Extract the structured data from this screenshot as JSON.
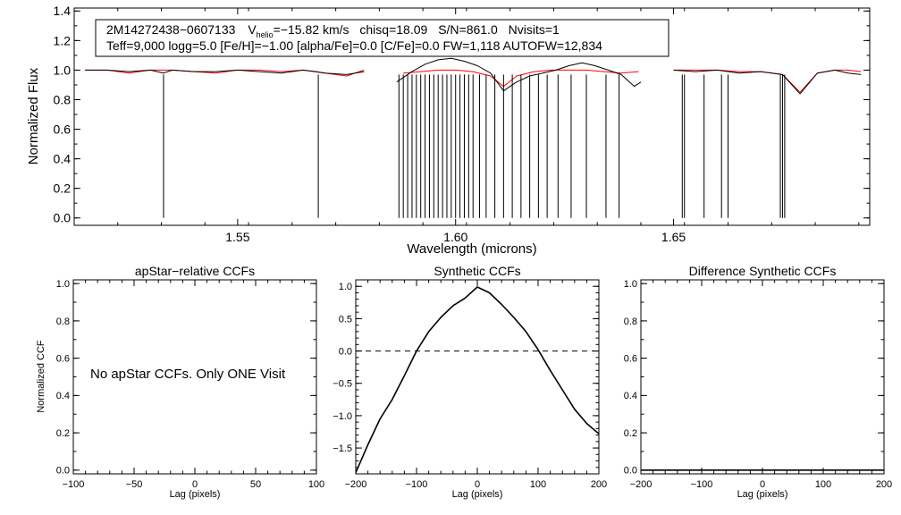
{
  "chart_data": [
    {
      "id": "spectrum",
      "type": "line",
      "xlabel": "Wavelength (microns)",
      "ylabel": "Normalized Flux",
      "xlim": [
        1.5125,
        1.695
      ],
      "ylim": [
        -0.05,
        1.42
      ],
      "x_ticks": [
        1.55,
        1.6,
        1.65
      ],
      "x_ticklabels": [
        "1.55",
        "1.60",
        "1.65"
      ],
      "y_ticks": [
        0.0,
        0.2,
        0.4,
        0.6,
        0.8,
        1.0,
        1.2,
        1.4
      ],
      "y_ticklabels": [
        "0.0",
        "0.2",
        "0.4",
        "0.6",
        "0.8",
        "1.0",
        "1.2",
        "1.4"
      ],
      "annotation": {
        "line1_star": "2M14272438−0607133",
        "line1_vhelio_prefix": "V",
        "line1_vhelio_sub": "helio",
        "line1_vhelio_value": "=−15.82 km/s",
        "line1_chisq": "chisq=18.09",
        "line1_sn": "S/N=861.0",
        "line1_nvisits": "Nvisits=1",
        "line2": "Teff=9,000 logg=5.0 [Fe/H]=−1.00 [alpha/Fe]=0.0 [C/Fe]=0.0 FW=1,118 AUTOFW=12,834"
      },
      "series": [
        {
          "name": "observed",
          "color": "#000000",
          "chips": [
            {
              "x": [
                1.515,
                1.52,
                1.525,
                1.53,
                1.533,
                1.535,
                1.54,
                1.545,
                1.55,
                1.555,
                1.56,
                1.565,
                1.568,
                1.57,
                1.575,
                1.579
              ],
              "y": [
                1.0,
                1.0,
                0.99,
                1.0,
                0.98,
                1.0,
                0.99,
                0.99,
                1.0,
                0.99,
                0.98,
                1.0,
                0.99,
                0.98,
                0.97,
                0.99
              ],
              "spikes": [
                [
                  1.533,
                  0.0
                ],
                [
                  1.5685,
                  0.0
                ]
              ]
            },
            {
              "x": [
                1.5865,
                1.588,
                1.59,
                1.593,
                1.596,
                1.599,
                1.602,
                1.605,
                1.608,
                1.611,
                1.614,
                1.617,
                1.62,
                1.623,
                1.626,
                1.629,
                1.632,
                1.635,
                1.638,
                1.641,
                1.6425
              ],
              "y": [
                0.92,
                0.95,
                0.99,
                1.04,
                1.07,
                1.08,
                1.06,
                1.03,
                0.98,
                0.86,
                0.92,
                0.96,
                0.98,
                1.0,
                1.03,
                1.05,
                1.03,
                1.0,
                0.97,
                0.89,
                0.92
              ],
              "spikes": [
                [
                  1.587,
                  0.0
                ],
                [
                  1.588,
                  0.0
                ],
                [
                  1.589,
                  0.0
                ],
                [
                  1.59,
                  0.0
                ],
                [
                  1.591,
                  0.0
                ],
                [
                  1.592,
                  0.0
                ],
                [
                  1.593,
                  0.0
                ],
                [
                  1.594,
                  0.0
                ],
                [
                  1.595,
                  0.0
                ],
                [
                  1.596,
                  0.0
                ],
                [
                  1.597,
                  0.0
                ],
                [
                  1.598,
                  0.0
                ],
                [
                  1.599,
                  0.0
                ],
                [
                  1.6,
                  0.0
                ],
                [
                  1.601,
                  0.0
                ],
                [
                  1.602,
                  0.0
                ],
                [
                  1.603,
                  0.0
                ],
                [
                  1.604,
                  0.0
                ],
                [
                  1.6055,
                  0.0
                ],
                [
                  1.607,
                  0.0
                ],
                [
                  1.609,
                  0.0
                ],
                [
                  1.611,
                  0.0
                ],
                [
                  1.613,
                  0.0
                ],
                [
                  1.615,
                  0.0
                ],
                [
                  1.617,
                  0.0
                ],
                [
                  1.619,
                  0.0
                ],
                [
                  1.621,
                  0.0
                ],
                [
                  1.6235,
                  0.0
                ],
                [
                  1.6265,
                  0.0
                ],
                [
                  1.63,
                  0.0
                ],
                [
                  1.6345,
                  0.0
                ],
                [
                  1.6375,
                  0.0
                ]
              ]
            },
            {
              "x": [
                1.65,
                1.655,
                1.66,
                1.665,
                1.67,
                1.675,
                1.679,
                1.683,
                1.687,
                1.69,
                1.693
              ],
              "y": [
                1.0,
                0.99,
                1.0,
                0.98,
                0.99,
                0.97,
                0.84,
                0.98,
                1.0,
                0.98,
                0.97
              ],
              "spikes": [
                [
                  1.652,
                  0.0
                ],
                [
                  1.6525,
                  0.0
                ],
                [
                  1.657,
                  0.0
                ],
                [
                  1.661,
                  0.0
                ],
                [
                  1.6625,
                  0.0
                ],
                [
                  1.6745,
                  0.0
                ],
                [
                  1.675,
                  0.0
                ],
                [
                  1.6755,
                  0.0
                ]
              ]
            }
          ]
        },
        {
          "name": "model",
          "color": "#ff0000",
          "chips": [
            {
              "x": [
                1.515,
                1.52,
                1.525,
                1.53,
                1.535,
                1.54,
                1.545,
                1.55,
                1.555,
                1.56,
                1.565,
                1.57,
                1.575,
                1.579
              ],
              "y": [
                1.0,
                1.0,
                0.98,
                1.0,
                1.0,
                0.99,
                0.98,
                1.0,
                1.0,
                0.99,
                1.0,
                0.98,
                0.96,
                1.0
              ]
            },
            {
              "x": [
                1.588,
                1.592,
                1.596,
                1.6,
                1.604,
                1.608,
                1.611,
                1.614,
                1.618,
                1.622,
                1.626,
                1.63,
                1.634,
                1.638,
                1.642
              ],
              "y": [
                0.98,
                0.99,
                1.0,
                1.0,
                0.99,
                0.96,
                0.89,
                0.96,
                0.99,
                1.0,
                1.0,
                1.0,
                0.99,
                0.98,
                0.99
              ]
            },
            {
              "x": [
                1.65,
                1.655,
                1.66,
                1.665,
                1.67,
                1.675,
                1.679,
                1.683,
                1.687,
                1.69,
                1.693
              ],
              "y": [
                1.0,
                1.0,
                1.0,
                0.99,
                0.99,
                0.97,
                0.85,
                0.98,
                1.0,
                1.0,
                0.99
              ]
            }
          ]
        }
      ]
    },
    {
      "id": "apstar-ccf",
      "type": "line",
      "title": "apStar−relative CCFs",
      "xlabel": "Lag (pixels)",
      "ylabel": "Normalized CCF",
      "xlim": [
        -100,
        100
      ],
      "ylim": [
        -0.02,
        1.02
      ],
      "x_ticks": [
        -100,
        -50,
        0,
        50,
        100
      ],
      "x_ticklabels": [
        "−100",
        "−50",
        "0",
        "50",
        "100"
      ],
      "y_ticks": [
        0.0,
        0.2,
        0.4,
        0.6,
        0.8,
        1.0
      ],
      "y_ticklabels": [
        "0.0",
        "0.2",
        "0.4",
        "0.6",
        "0.8",
        "1.0"
      ],
      "message": "No apStar CCFs.  Only ONE Visit",
      "series": []
    },
    {
      "id": "synthetic-ccf",
      "type": "line",
      "title": "Synthetic CCFs",
      "xlabel": "Lag (pixels)",
      "ylabel": "",
      "xlim": [
        -200,
        200
      ],
      "ylim": [
        -1.9,
        1.1
      ],
      "x_ticks": [
        -200,
        -100,
        0,
        100,
        200
      ],
      "x_ticklabels": [
        "−200",
        "−100",
        "0",
        "100",
        "200"
      ],
      "y_ticks": [
        -1.5,
        -1.0,
        -0.5,
        0.0,
        0.5,
        1.0
      ],
      "y_ticklabels": [
        "−1.5",
        "−1.0",
        "−0.5",
        "0.0",
        "0.5",
        "1.0"
      ],
      "hline": 0.0,
      "series": [
        {
          "name": "synthetic-ccf",
          "color": "#000000",
          "x": [
            -200,
            -180,
            -160,
            -140,
            -120,
            -100,
            -80,
            -60,
            -40,
            -20,
            0,
            20,
            40,
            60,
            80,
            100,
            120,
            140,
            160,
            180,
            200
          ],
          "y": [
            -1.88,
            -1.45,
            -1.05,
            -0.75,
            -0.38,
            0.0,
            0.3,
            0.52,
            0.7,
            0.82,
            0.99,
            0.9,
            0.72,
            0.52,
            0.3,
            0.02,
            -0.3,
            -0.6,
            -0.9,
            -1.12,
            -1.28
          ]
        }
      ]
    },
    {
      "id": "difference-ccf",
      "type": "line",
      "title": "Difference Synthetic CCFs",
      "xlabel": "Lag (pixels)",
      "ylabel": "",
      "xlim": [
        -200,
        200
      ],
      "ylim": [
        -0.02,
        1.02
      ],
      "x_ticks": [
        -200,
        -100,
        0,
        100,
        200
      ],
      "x_ticklabels": [
        "−200",
        "−100",
        "0",
        "100",
        "200"
      ],
      "y_ticks": [
        0.0,
        0.2,
        0.4,
        0.6,
        0.8,
        1.0
      ],
      "y_ticklabels": [
        "0.0",
        "0.2",
        "0.4",
        "0.6",
        "0.8",
        "1.0"
      ],
      "series": [
        {
          "name": "difference",
          "color": "#000000",
          "x": [
            -200,
            200
          ],
          "y": [
            0.0,
            0.0
          ]
        }
      ]
    }
  ]
}
